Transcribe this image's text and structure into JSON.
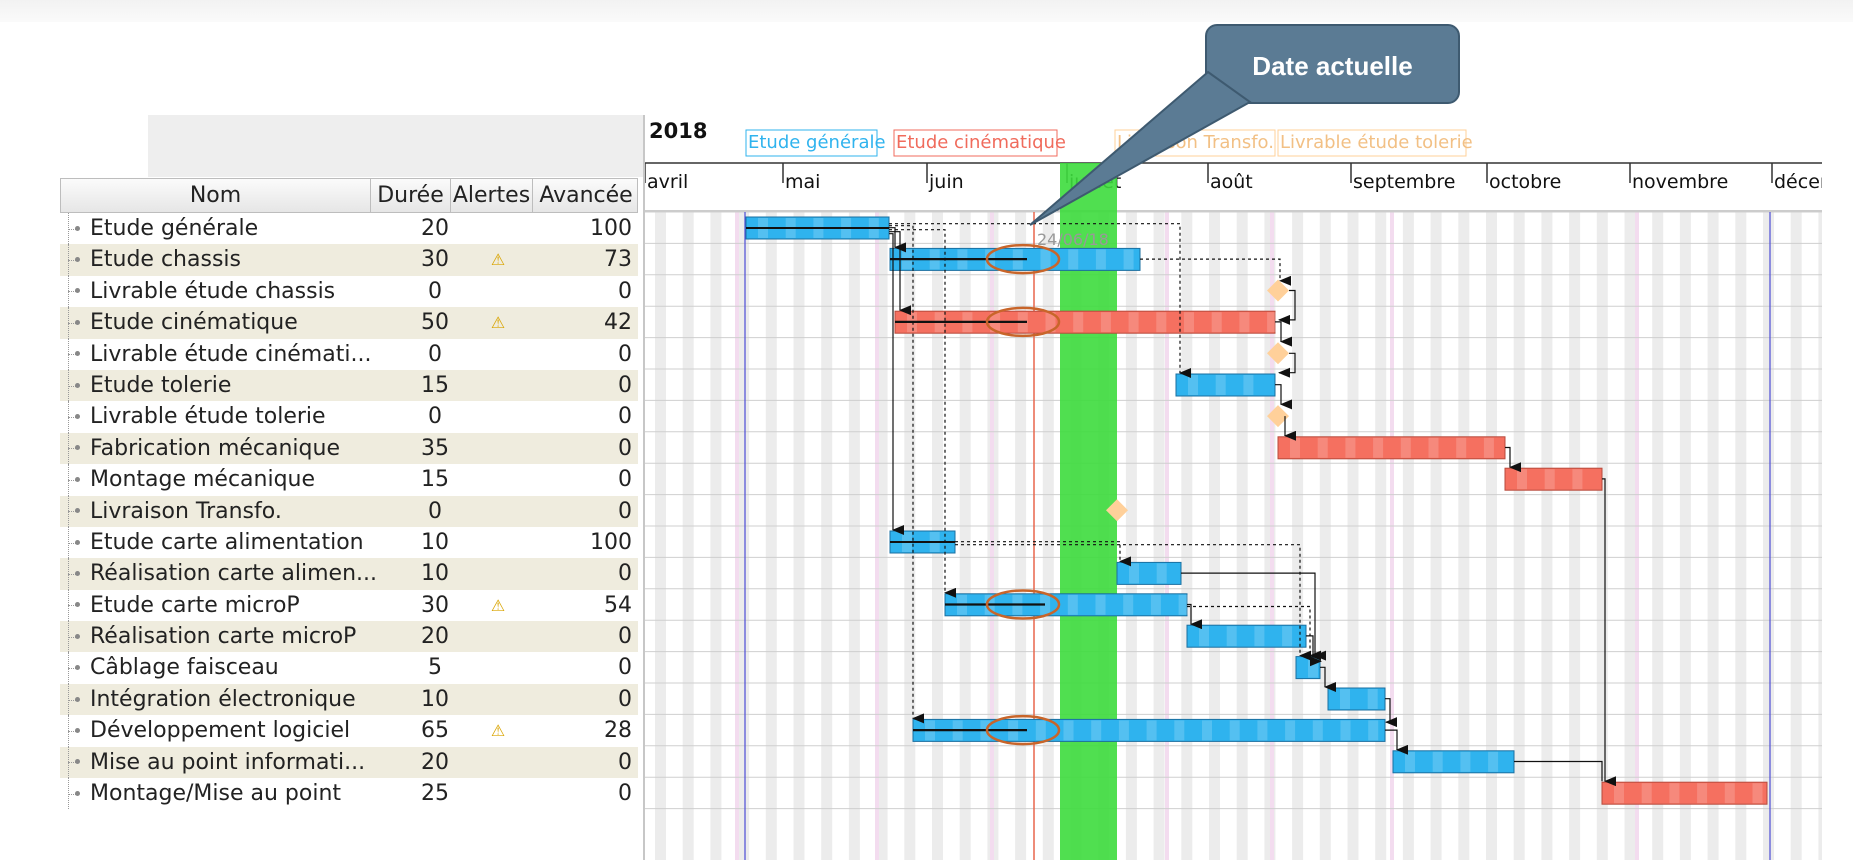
{
  "timeline": {
    "year": "2018",
    "months": [
      "avril",
      "mai",
      "juin",
      "juillet",
      "août",
      "septembre",
      "octobre",
      "novembre",
      "décen"
    ],
    "today_label": "24/06/18",
    "milestone_labels": [
      "Etude générale",
      "Etude cinématique",
      "Livraison Transfo.",
      "Livrable étude tolerie"
    ]
  },
  "callout": {
    "text": "Date actuelle"
  },
  "columns": {
    "name": "Nom",
    "duration": "Durée",
    "alerts": "Alertes",
    "progress": "Avancée"
  },
  "tasks": [
    {
      "name": "Etude générale",
      "duration": "20",
      "alert": "",
      "progress": "100"
    },
    {
      "name": "Etude chassis",
      "duration": "30",
      "alert": "⚠",
      "progress": "73"
    },
    {
      "name": "Livrable étude chassis",
      "duration": "0",
      "alert": "",
      "progress": "0"
    },
    {
      "name": "Etude cinématique",
      "duration": "50",
      "alert": "⚠",
      "progress": "42"
    },
    {
      "name": "Livrable étude cinémati...",
      "duration": "0",
      "alert": "",
      "progress": "0"
    },
    {
      "name": "Etude tolerie",
      "duration": "15",
      "alert": "",
      "progress": "0"
    },
    {
      "name": "Livrable étude tolerie",
      "duration": "0",
      "alert": "",
      "progress": "0"
    },
    {
      "name": "Fabrication mécanique",
      "duration": "35",
      "alert": "",
      "progress": "0"
    },
    {
      "name": "Montage mécanique",
      "duration": "15",
      "alert": "",
      "progress": "0"
    },
    {
      "name": "Livraison Transfo.",
      "duration": "0",
      "alert": "",
      "progress": "0"
    },
    {
      "name": "Etude carte alimentation",
      "duration": "10",
      "alert": "",
      "progress": "100"
    },
    {
      "name": "Réalisation carte alimen...",
      "duration": "10",
      "alert": "",
      "progress": "0"
    },
    {
      "name": "Etude carte microP",
      "duration": "30",
      "alert": "⚠",
      "progress": "54"
    },
    {
      "name": "Réalisation carte microP",
      "duration": "20",
      "alert": "",
      "progress": "0"
    },
    {
      "name": "Câblage faisceau",
      "duration": "5",
      "alert": "",
      "progress": "0"
    },
    {
      "name": "Intégration électronique",
      "duration": "10",
      "alert": "",
      "progress": "0"
    },
    {
      "name": "Développement logiciel",
      "duration": "65",
      "alert": "⚠",
      "progress": "28"
    },
    {
      "name": "Mise au point informati...",
      "duration": "20",
      "alert": "",
      "progress": "0"
    },
    {
      "name": "Montage/Mise au point",
      "duration": "25",
      "alert": "",
      "progress": "0"
    }
  ],
  "colors": {
    "blue_task": "#2fb3ee",
    "red_task": "#f57060",
    "milestone": "#ffd09a",
    "current_band": "#3ddc3d",
    "today_line": "#e8674d",
    "highlight_ellipse": "#c8652a",
    "callout_bg": "#5b7b94"
  }
}
